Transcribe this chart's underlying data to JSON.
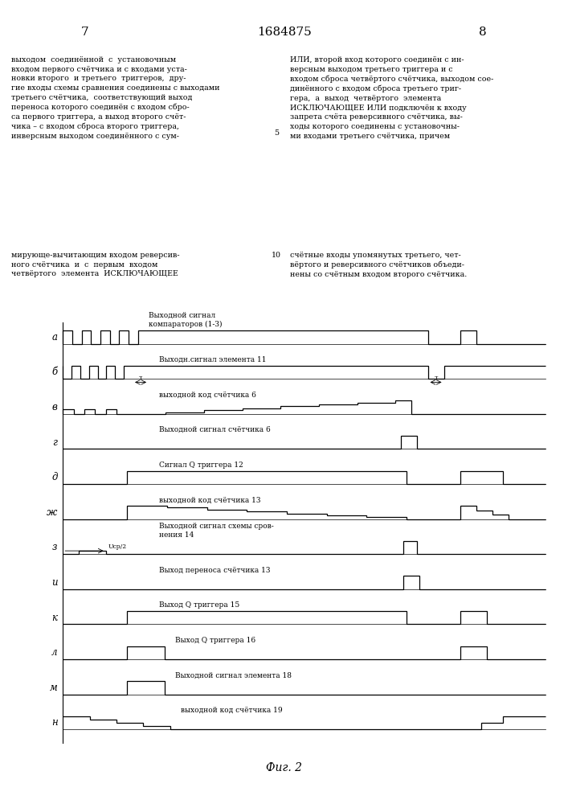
{
  "page_left": "7",
  "page_center": "1684875",
  "page_right": "8",
  "fig_caption": "Фиг. 2",
  "left_col_text1": "выходом  соединённой  с  установочным\nвходом первого счётчика и с входами уста-\nновки второго  и третьего  триггеров,  дру-\nгие входы схемы сравнения соединены с выходами\nтретьего счётчика,  соответствующий выход\nпереноса которого соединён с входом сбро-\nса первого триггера, а выход второго счёт-\nчика – с входом сброса второго триггера,\nинверсным выходом соединённого с сум-",
  "right_col_text1": "ИЛИ, второй вход которого соединён с ин-\nверсным выходом третьего триггера и с\nвходом сброса четвёртого счётчика, выходом сое-\nдинённого с входом сброса третьего триг-\nгера,  а  выход  четвёртого  элемента\nИСКЛЮЧАЮЩЕЕ ИЛИ подключён к входу\nзапрета счёта реверсивного счётчика, вы-\nходы которого соединены с установочны-\nми входами третьего счётчика, причем",
  "linenum1": "5",
  "left_col_text2": "мирующе-вычитающим входом реверсив-\nного счётчика  и  с  первым  входом\nчетвёртого  элемента  ИСКЛЮЧАЮЩЕЕ",
  "right_col_text2": "счётные входы упомянутых третьего, чет-\nвёртого и реверсивного счётчиков объеди-\nнены со счётным входом второго счётчика.",
  "linenum2": "10",
  "channels": [
    "а",
    "б",
    "в",
    "г",
    "д",
    "ж",
    "з",
    "и",
    "к",
    "л",
    "м",
    "н"
  ],
  "channel_labels": {
    "а": "а",
    "б": "б",
    "в": "в",
    "г": "г",
    "д": "д",
    "ж": "ж",
    "з": "з",
    "и": "и",
    "к": "к",
    "л": "л",
    "м": "м",
    "н": "н"
  },
  "channel_descriptions": {
    "а": "Выходной сигнал\nкомпараторов (1-3)",
    "б": "Выходн.сигнал элемента 11",
    "в": "выходной код счётчика 6",
    "г": "Выходной сигнал счётчика 6",
    "д": "Сигнал Q триггера 12",
    "ж": "выходной код счётчика 13",
    "з": "Выходной сигнал схемы сров-\nнения 14",
    "и": "Выход переноса счётчика 13",
    "к": "Выход Q триггера 15",
    "л": "Выход Q триггера 16",
    "м": "Выходной сигнал элемента 18",
    "н": "выходной код счётчика 19"
  },
  "bg_color": "#ffffff"
}
